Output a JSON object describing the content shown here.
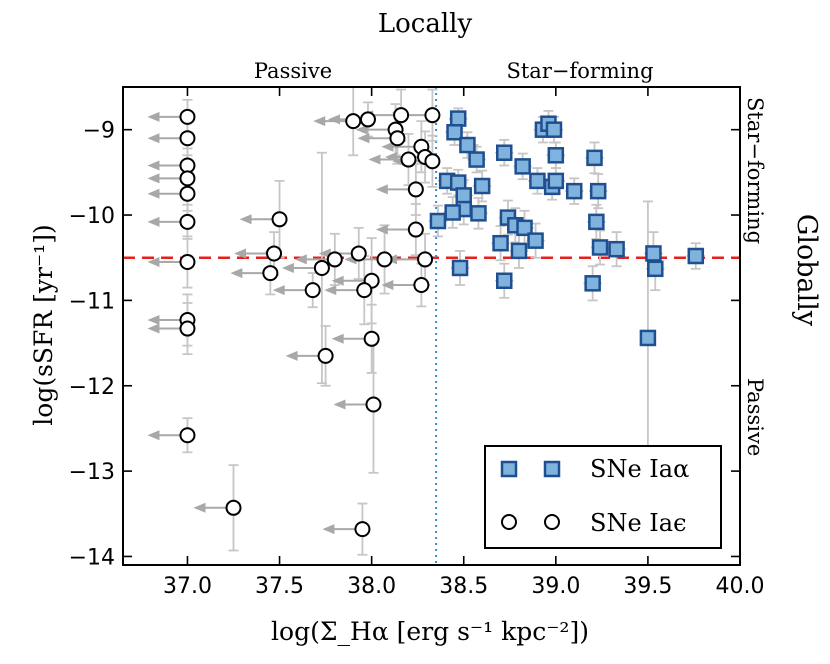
{
  "chart_data": {
    "type": "scatter",
    "title": "Locally",
    "xlabel": "log(Σ_Hα [erg s⁻¹ kpc⁻²])",
    "ylabel": "log(sSFR [yr⁻¹])",
    "right_label": "Globally",
    "top_region_labels": [
      "Passive",
      "Star−forming"
    ],
    "right_region_labels": [
      "Star−forming",
      "Passive"
    ],
    "xlim": [
      36.65,
      40.0
    ],
    "ylim": [
      -14.1,
      -8.5
    ],
    "xticks": [
      "37.0",
      "37.5",
      "38.0",
      "38.5",
      "39.0",
      "39.5",
      "40.0"
    ],
    "yticks": [
      "−9",
      "−10",
      "−11",
      "−12",
      "−13",
      "−14"
    ],
    "xtick_values": [
      37.0,
      37.5,
      38.0,
      38.5,
      39.0,
      39.5,
      40.0
    ],
    "ytick_values": [
      -9,
      -10,
      -11,
      -12,
      -13,
      -14
    ],
    "vline_x": 38.35,
    "hline_y": -10.5,
    "legend_position": "lower-right",
    "colors": {
      "alpha_fill": "#7fb3dd",
      "alpha_edge": "#1f4f8f",
      "hline": "#e8201c",
      "vline": "#3a8fc8",
      "errorbar": "#c6c6c6",
      "arrow": "#a8a8a8"
    },
    "series": [
      {
        "name": "SNe Iaα",
        "marker": "square",
        "points": [
          {
            "x": 38.47,
            "y": -8.87,
            "ex": 0.05,
            "ey": 0.12
          },
          {
            "x": 38.45,
            "y": -9.03,
            "ex": 0.05,
            "ey": 0.15
          },
          {
            "x": 38.52,
            "y": -9.18,
            "ex": 0.06,
            "ey": 0.15
          },
          {
            "x": 38.57,
            "y": -9.35,
            "ex": 0.05,
            "ey": 0.15
          },
          {
            "x": 38.41,
            "y": -9.6,
            "ex": 0.05,
            "ey": 0.15
          },
          {
            "x": 38.47,
            "y": -9.62,
            "ex": 0.05,
            "ey": 0.15
          },
          {
            "x": 38.6,
            "y": -9.66,
            "ex": 0.05,
            "ey": 0.18
          },
          {
            "x": 38.5,
            "y": -9.77,
            "ex": 0.05,
            "ey": 0.18
          },
          {
            "x": 38.5,
            "y": -9.93,
            "ex": 0.05,
            "ey": 0.18
          },
          {
            "x": 38.44,
            "y": -9.97,
            "ex": 0.05,
            "ey": 0.18
          },
          {
            "x": 38.58,
            "y": -9.98,
            "ex": 0.05,
            "ey": 0.18
          },
          {
            "x": 38.36,
            "y": -10.07,
            "ex": 0.05,
            "ey": 0.18
          },
          {
            "x": 38.72,
            "y": -9.27,
            "ex": 0.05,
            "ey": 0.15
          },
          {
            "x": 38.93,
            "y": -9.0,
            "ex": 0.05,
            "ey": 0.15
          },
          {
            "x": 38.96,
            "y": -8.93,
            "ex": 0.05,
            "ey": 0.15
          },
          {
            "x": 38.99,
            "y": -9.0,
            "ex": 0.05,
            "ey": 0.15
          },
          {
            "x": 39.0,
            "y": -9.3,
            "ex": 0.05,
            "ey": 0.15
          },
          {
            "x": 38.82,
            "y": -9.43,
            "ex": 0.05,
            "ey": 0.15
          },
          {
            "x": 38.9,
            "y": -9.6,
            "ex": 0.05,
            "ey": 0.15
          },
          {
            "x": 38.98,
            "y": -9.67,
            "ex": 0.05,
            "ey": 0.15
          },
          {
            "x": 39.0,
            "y": -9.6,
            "ex": 0.05,
            "ey": 0.15
          },
          {
            "x": 39.1,
            "y": -9.72,
            "ex": 0.05,
            "ey": 0.15
          },
          {
            "x": 39.21,
            "y": -9.33,
            "ex": 0.05,
            "ey": 0.18
          },
          {
            "x": 39.23,
            "y": -9.72,
            "ex": 0.05,
            "ey": 0.2
          },
          {
            "x": 39.22,
            "y": -10.08,
            "ex": 0.05,
            "ey": 0.2
          },
          {
            "x": 38.74,
            "y": -10.03,
            "ex": 0.05,
            "ey": 0.2
          },
          {
            "x": 38.78,
            "y": -10.12,
            "ex": 0.05,
            "ey": 0.2
          },
          {
            "x": 38.83,
            "y": -10.15,
            "ex": 0.05,
            "ey": 0.2
          },
          {
            "x": 38.7,
            "y": -10.33,
            "ex": 0.05,
            "ey": 0.2
          },
          {
            "x": 38.89,
            "y": -10.3,
            "ex": 0.05,
            "ey": 0.2
          },
          {
            "x": 38.8,
            "y": -10.42,
            "ex": 0.05,
            "ey": 0.2
          },
          {
            "x": 39.24,
            "y": -10.38,
            "ex": 0.05,
            "ey": 0.2
          },
          {
            "x": 39.33,
            "y": -10.4,
            "ex": 0.05,
            "ey": 0.2
          },
          {
            "x": 39.53,
            "y": -10.45,
            "ex": 0.05,
            "ey": 0.25
          },
          {
            "x": 39.54,
            "y": -10.63,
            "ex": 0.05,
            "ey": 0.25
          },
          {
            "x": 39.76,
            "y": -10.48,
            "ex": 0.05,
            "ey": 0.15
          },
          {
            "x": 38.48,
            "y": -10.62,
            "ex": 0.05,
            "ey": 0.2
          },
          {
            "x": 38.72,
            "y": -10.77,
            "ex": 0.05,
            "ey": 0.2
          },
          {
            "x": 39.2,
            "y": -10.8,
            "ex": 0.05,
            "ey": 0.2
          },
          {
            "x": 39.5,
            "y": -11.44,
            "ex": 0.0,
            "ey": 1.6
          }
        ]
      },
      {
        "name": "SNe Iaϵ",
        "marker": "circle",
        "upper_limit": "x",
        "points": [
          {
            "x": 37.0,
            "y": -8.85,
            "ey": 0.2
          },
          {
            "x": 37.0,
            "y": -9.1,
            "ey": 0.2
          },
          {
            "x": 37.0,
            "y": -9.42,
            "ey": 0.2
          },
          {
            "x": 37.0,
            "y": -9.57,
            "ey": 0.2
          },
          {
            "x": 37.0,
            "y": -9.75,
            "ey": 0.2
          },
          {
            "x": 37.0,
            "y": -10.08,
            "ey": 0.2
          },
          {
            "x": 37.0,
            "y": -10.55,
            "ey": 0.3
          },
          {
            "x": 37.0,
            "y": -11.23,
            "ey": 0.3
          },
          {
            "x": 37.0,
            "y": -11.33,
            "ey": 0.3
          },
          {
            "x": 37.0,
            "y": -12.58,
            "ey": 0.2
          },
          {
            "x": 37.5,
            "y": -10.05,
            "ey": 0.45
          },
          {
            "x": 37.47,
            "y": -10.45,
            "ey": 0.25
          },
          {
            "x": 37.45,
            "y": -10.68,
            "ey": 0.25
          },
          {
            "x": 37.25,
            "y": -13.43,
            "ey": 0.5
          },
          {
            "x": 37.68,
            "y": -10.88,
            "ey": 0.2
          },
          {
            "x": 37.73,
            "y": -10.62,
            "ey": 1.35
          },
          {
            "x": 37.8,
            "y": -10.52,
            "ey": 0.3
          },
          {
            "x": 37.75,
            "y": -11.65,
            "ey": 0.35
          },
          {
            "x": 37.9,
            "y": -8.9,
            "ey": 0.4
          },
          {
            "x": 37.98,
            "y": -8.88,
            "ey": 0.2
          },
          {
            "x": 38.13,
            "y": -9.0,
            "ey": 0.3
          },
          {
            "x": 38.16,
            "y": -8.83,
            "ey": 0.3
          },
          {
            "x": 38.14,
            "y": -9.1,
            "ey": 0.3
          },
          {
            "x": 38.2,
            "y": -9.35,
            "ey": 0.3
          },
          {
            "x": 38.27,
            "y": -9.2,
            "ey": 0.3
          },
          {
            "x": 38.29,
            "y": -9.32,
            "ey": 0.3
          },
          {
            "x": 38.33,
            "y": -9.37,
            "ey": 0.3
          },
          {
            "x": 38.33,
            "y": -8.83,
            "ey": 0.3
          },
          {
            "x": 38.24,
            "y": -9.7,
            "ey": 0.3
          },
          {
            "x": 38.24,
            "y": -10.17,
            "ey": 0.3
          },
          {
            "x": 38.29,
            "y": -10.52,
            "ey": 0.3
          },
          {
            "x": 38.27,
            "y": -10.82,
            "ey": 0.25
          },
          {
            "x": 37.93,
            "y": -10.45,
            "ey": 0.3
          },
          {
            "x": 38.07,
            "y": -10.52,
            "ey": 0.4
          },
          {
            "x": 38.0,
            "y": -10.77,
            "ey": 0.5
          },
          {
            "x": 37.96,
            "y": -10.88,
            "ey": 0.4
          },
          {
            "x": 38.0,
            "y": -11.45,
            "ey": 0.4
          },
          {
            "x": 38.01,
            "y": -12.22,
            "ey": 0.8
          },
          {
            "x": 37.95,
            "y": -13.68,
            "ey": 0.3
          }
        ]
      }
    ]
  }
}
